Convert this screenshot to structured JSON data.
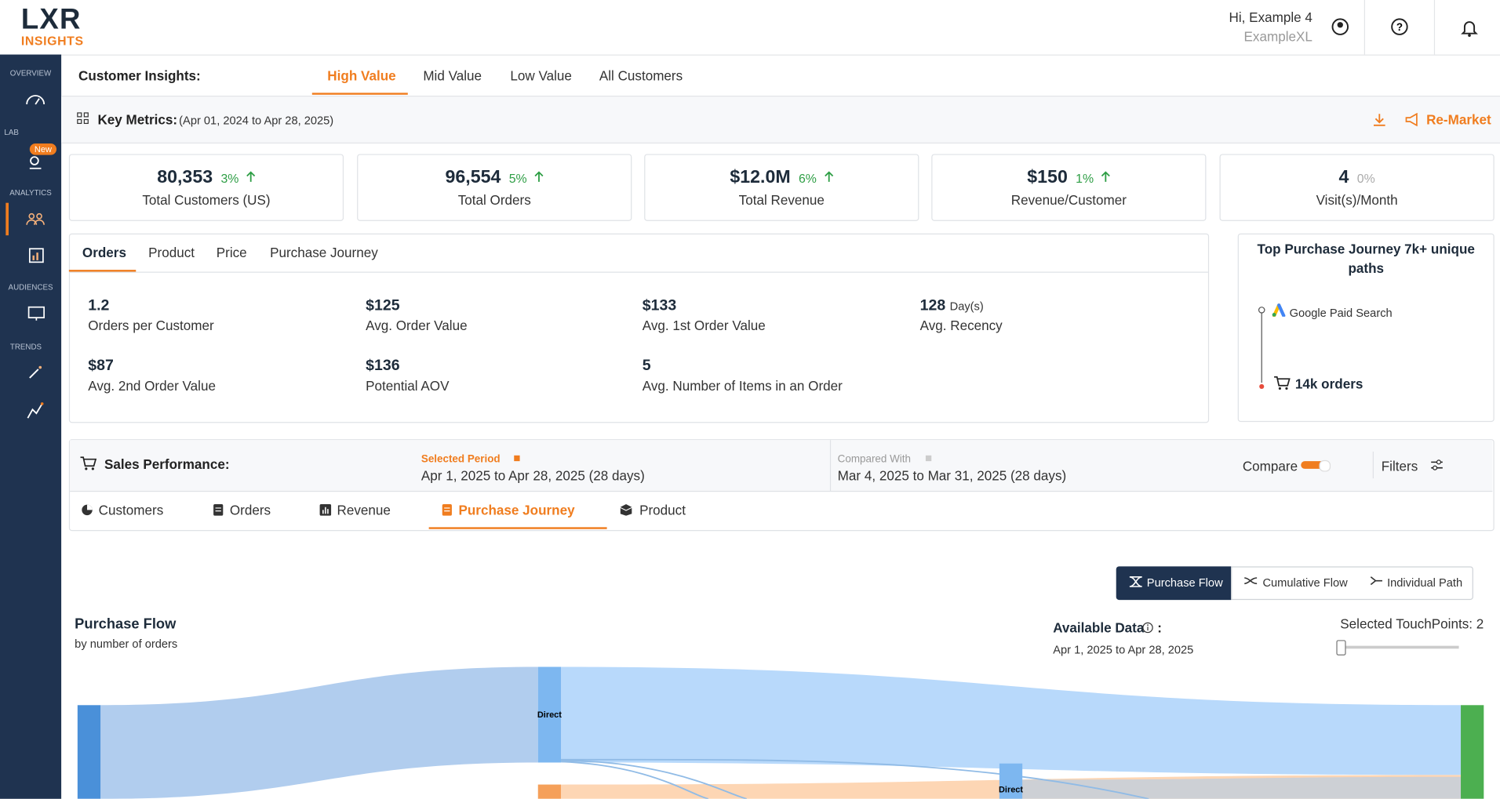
{
  "header": {
    "logo_top": "LXR",
    "logo_bottom": "INSIGHTS",
    "greeting": "Hi, Example 4",
    "account": "ExampleXL"
  },
  "sidebar": {
    "sections": [
      "OVERVIEW",
      "LAB",
      "ANALYTICS",
      "AUDIENCES",
      "TRENDS"
    ],
    "badge": "New"
  },
  "tabs": {
    "label": "Customer Insights:",
    "items": [
      "High Value",
      "Mid Value",
      "Low Value",
      "All Customers"
    ]
  },
  "key_metrics": {
    "title": "Key Metrics:",
    "range": "(Apr 01, 2024 to Apr 28, 2025)",
    "action": "Re-Market"
  },
  "metrics": [
    {
      "value": "80,353",
      "change": "3%",
      "label": "Total Customers (US)"
    },
    {
      "value": "96,554",
      "change": "5%",
      "label": "Total Orders"
    },
    {
      "value": "$12.0M",
      "change": "6%",
      "label": "Total Revenue"
    },
    {
      "value": "$150",
      "change": "1%",
      "label": "Revenue/Customer"
    },
    {
      "value": "4",
      "change": "0%",
      "label": "Visit(s)/Month"
    }
  ],
  "orders_panel": {
    "tabs": [
      "Orders",
      "Product",
      "Price",
      "Purchase Journey"
    ],
    "stats": [
      {
        "value": "1.2",
        "label": "Orders per Customer"
      },
      {
        "value": "$125",
        "label": "Avg. Order Value"
      },
      {
        "value": "$133",
        "label": "Avg. 1st Order Value"
      },
      {
        "value": "128",
        "unit": "Day(s)",
        "label": "Avg. Recency"
      },
      {
        "value": "$87",
        "label": "Avg. 2nd Order Value"
      },
      {
        "value": "$136",
        "label": "Potential AOV"
      },
      {
        "value": "5",
        "label": "Avg. Number of Items in an Order"
      }
    ]
  },
  "journey": {
    "title": "Top Purchase Journey 7k+  unique paths",
    "step": "Google Paid Search",
    "result": "14k orders"
  },
  "sales": {
    "title": "Sales Performance:",
    "selected_label": "Selected Period",
    "selected_range": "Apr 1, 2025 to Apr 28, 2025 (28 days)",
    "compared_label": "Compared With",
    "compared_range": "Mar 4, 2025 to Mar 31, 2025 (28 days)",
    "compare": "Compare",
    "filters": "Filters"
  },
  "sales_tabs": [
    "Customers",
    "Orders",
    "Revenue",
    "Purchase Journey",
    "Product"
  ],
  "flow_modes": [
    "Purchase Flow",
    "Cumulative Flow",
    "Individual Path"
  ],
  "flow": {
    "title": "Purchase Flow",
    "subtitle": "by number of orders",
    "available": "Available Data",
    "colon": ":",
    "range": "Apr 1, 2025 to Apr 28, 2025",
    "touchpoints": "Selected TouchPoints: 2",
    "nodes": [
      "Direct",
      "Direct"
    ]
  }
}
